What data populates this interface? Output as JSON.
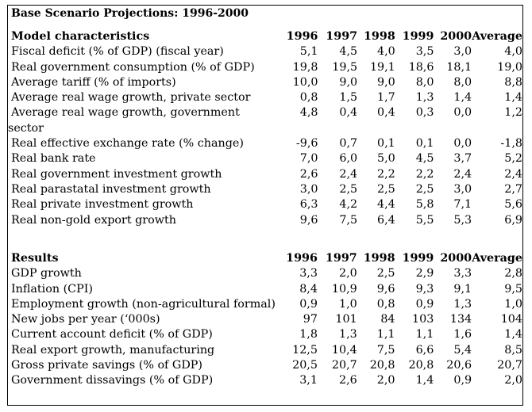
{
  "title": "Base Scenario Projections: 1996-2000",
  "model": {
    "header": [
      "Model characteristics",
      "1996",
      "1997",
      "1998",
      "1999",
      "2000",
      "Average"
    ],
    "rows": [
      {
        "label": "Fiscal deficit (% of GDP) (fiscal year)",
        "v": [
          "5,1",
          "4,5",
          "4,0",
          "3,5",
          "3,0",
          "4,0"
        ]
      },
      {
        "label": "Real government consumption (% of GDP)",
        "v": [
          "19,8",
          "19,5",
          "19,1",
          "18,6",
          "18,1",
          "19,0"
        ]
      },
      {
        "label": "Average tariff (% of imports)",
        "v": [
          "10,0",
          "9,0",
          "9,0",
          "8,0",
          "8,0",
          "8,8"
        ]
      },
      {
        "label": "Average real wage growth, private sector",
        "v": [
          "0,8",
          "1,5",
          "1,7",
          "1,3",
          "1,4",
          "1,4"
        ]
      },
      {
        "label": "Average real wage growth, government sector",
        "v": [
          "4,8",
          "0,4",
          "0,4",
          "0,3",
          "0,0",
          "1,2"
        ],
        "wrap": true
      },
      {
        "label": "Real effective exchange rate (% change)",
        "v": [
          "-9,6",
          "0,7",
          "0,1",
          "0,1",
          "0,0",
          "-1,8"
        ]
      },
      {
        "label": "Real bank rate",
        "v": [
          "7,0",
          "6,0",
          "5,0",
          "4,5",
          "3,7",
          "5,2"
        ]
      },
      {
        "label": "Real government investment growth",
        "v": [
          "2,6",
          "2,4",
          "2,2",
          "2,2",
          "2,4",
          "2,4"
        ]
      },
      {
        "label": "Real parastatal investment growth",
        "v": [
          "3,0",
          "2,5",
          "2,5",
          "2,5",
          "3,0",
          "2,7"
        ]
      },
      {
        "label": "Real private investment growth",
        "v": [
          "6,3",
          "4,2",
          "4,4",
          "5,8",
          "7,1",
          "5,6"
        ]
      },
      {
        "label": "Real non-gold export growth",
        "v": [
          "9,6",
          "7,5",
          "6,4",
          "5,5",
          "5,3",
          "6,9"
        ]
      }
    ]
  },
  "results": {
    "header": [
      "Results",
      "1996",
      "1997",
      "1998",
      "1999",
      "2000",
      "Average"
    ],
    "rows": [
      {
        "label": "GDP growth",
        "v": [
          "3,3",
          "2,0",
          "2,5",
          "2,9",
          "3,3",
          "2,8"
        ]
      },
      {
        "label": "Inflation (CPI)",
        "v": [
          "8,4",
          "10,9",
          "9,6",
          "9,3",
          "9,1",
          "9,5"
        ]
      },
      {
        "label": "Employment growth (non-agricultural formal)",
        "v": [
          "0,9",
          "1,0",
          "0,8",
          "0,9",
          "1,3",
          "1,0"
        ],
        "wrap": true
      },
      {
        "label": "New jobs per year (‘000s)",
        "v": [
          "97",
          "101",
          "84",
          "103",
          "134",
          "104"
        ]
      },
      {
        "label": "Current account deficit (% of GDP)",
        "v": [
          "1,8",
          "1,3",
          "1,1",
          "1,1",
          "1,6",
          "1,4"
        ]
      },
      {
        "label": "Real export growth, manufacturing",
        "v": [
          "12,5",
          "10,4",
          "7,5",
          "6,6",
          "5,4",
          "8,5"
        ]
      },
      {
        "label": "Gross private savings (% of GDP)",
        "v": [
          "20,5",
          "20,7",
          "20,8",
          "20,8",
          "20,6",
          "20,7"
        ]
      },
      {
        "label": "Government dissavings (% of GDP)",
        "v": [
          "3,1",
          "2,6",
          "2,0",
          "1,4",
          "0,9",
          "2,0"
        ]
      }
    ]
  }
}
